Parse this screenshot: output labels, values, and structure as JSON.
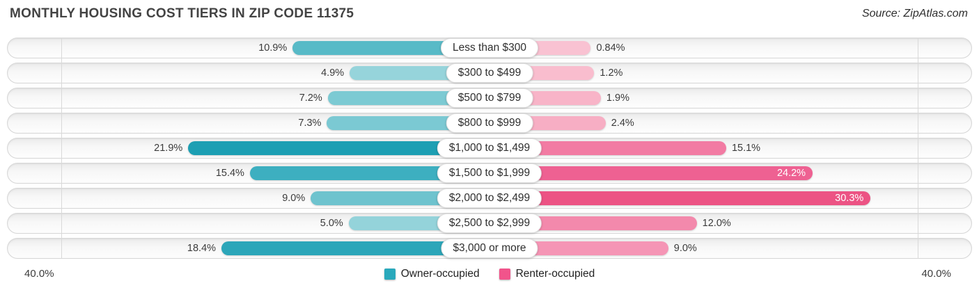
{
  "header": {
    "source": "Source: ZipAtlas.com"
  },
  "chart_data": {
    "type": "bar",
    "variant": "diverging-horizontal",
    "title": "MONTHLY HOUSING COST TIERS IN ZIP CODE 11375",
    "categories": [
      "Less than $300",
      "$300 to $499",
      "$500 to $799",
      "$800 to $999",
      "$1,000 to $1,499",
      "$1,500 to $1,999",
      "$2,000 to $2,499",
      "$2,500 to $2,999",
      "$3,000 or more"
    ],
    "series": [
      {
        "name": "Owner-occupied",
        "side": "left",
        "values": [
          10.9,
          4.9,
          7.2,
          7.3,
          21.9,
          15.4,
          9.0,
          5.0,
          18.4
        ],
        "labels": [
          "10.9%",
          "4.9%",
          "7.2%",
          "7.3%",
          "21.9%",
          "15.4%",
          "9.0%",
          "5.0%",
          "18.4%"
        ],
        "colors": [
          "#58bac7",
          "#96d4db",
          "#7ccad3",
          "#7bc9d3",
          "#1d9fb3",
          "#3dafc0",
          "#6ec3ce",
          "#94d3da",
          "#2ca6b9"
        ]
      },
      {
        "name": "Renter-occupied",
        "side": "right",
        "values": [
          0.84,
          1.2,
          1.9,
          2.4,
          15.1,
          24.2,
          30.3,
          12.0,
          9.0
        ],
        "labels": [
          "0.84%",
          "1.2%",
          "1.9%",
          "2.4%",
          "15.1%",
          "24.2%",
          "30.3%",
          "12.0%",
          "9.0%"
        ],
        "colors": [
          "#f9c2d2",
          "#f9bdce",
          "#f8b4c8",
          "#f7aec4",
          "#f27ba3",
          "#ee6192",
          "#ec5384",
          "#f389ac",
          "#f595b5"
        ]
      }
    ],
    "axis": {
      "xlim": [
        -40,
        40
      ],
      "left_end_label": "40.0%",
      "right_end_label": "40.0%",
      "gridlines_pct": [
        40,
        40
      ]
    },
    "legend": [
      {
        "label": "Owner-occupied",
        "color": "#2aa9bc"
      },
      {
        "label": "Renter-occupied",
        "color": "#f1548b"
      }
    ]
  }
}
